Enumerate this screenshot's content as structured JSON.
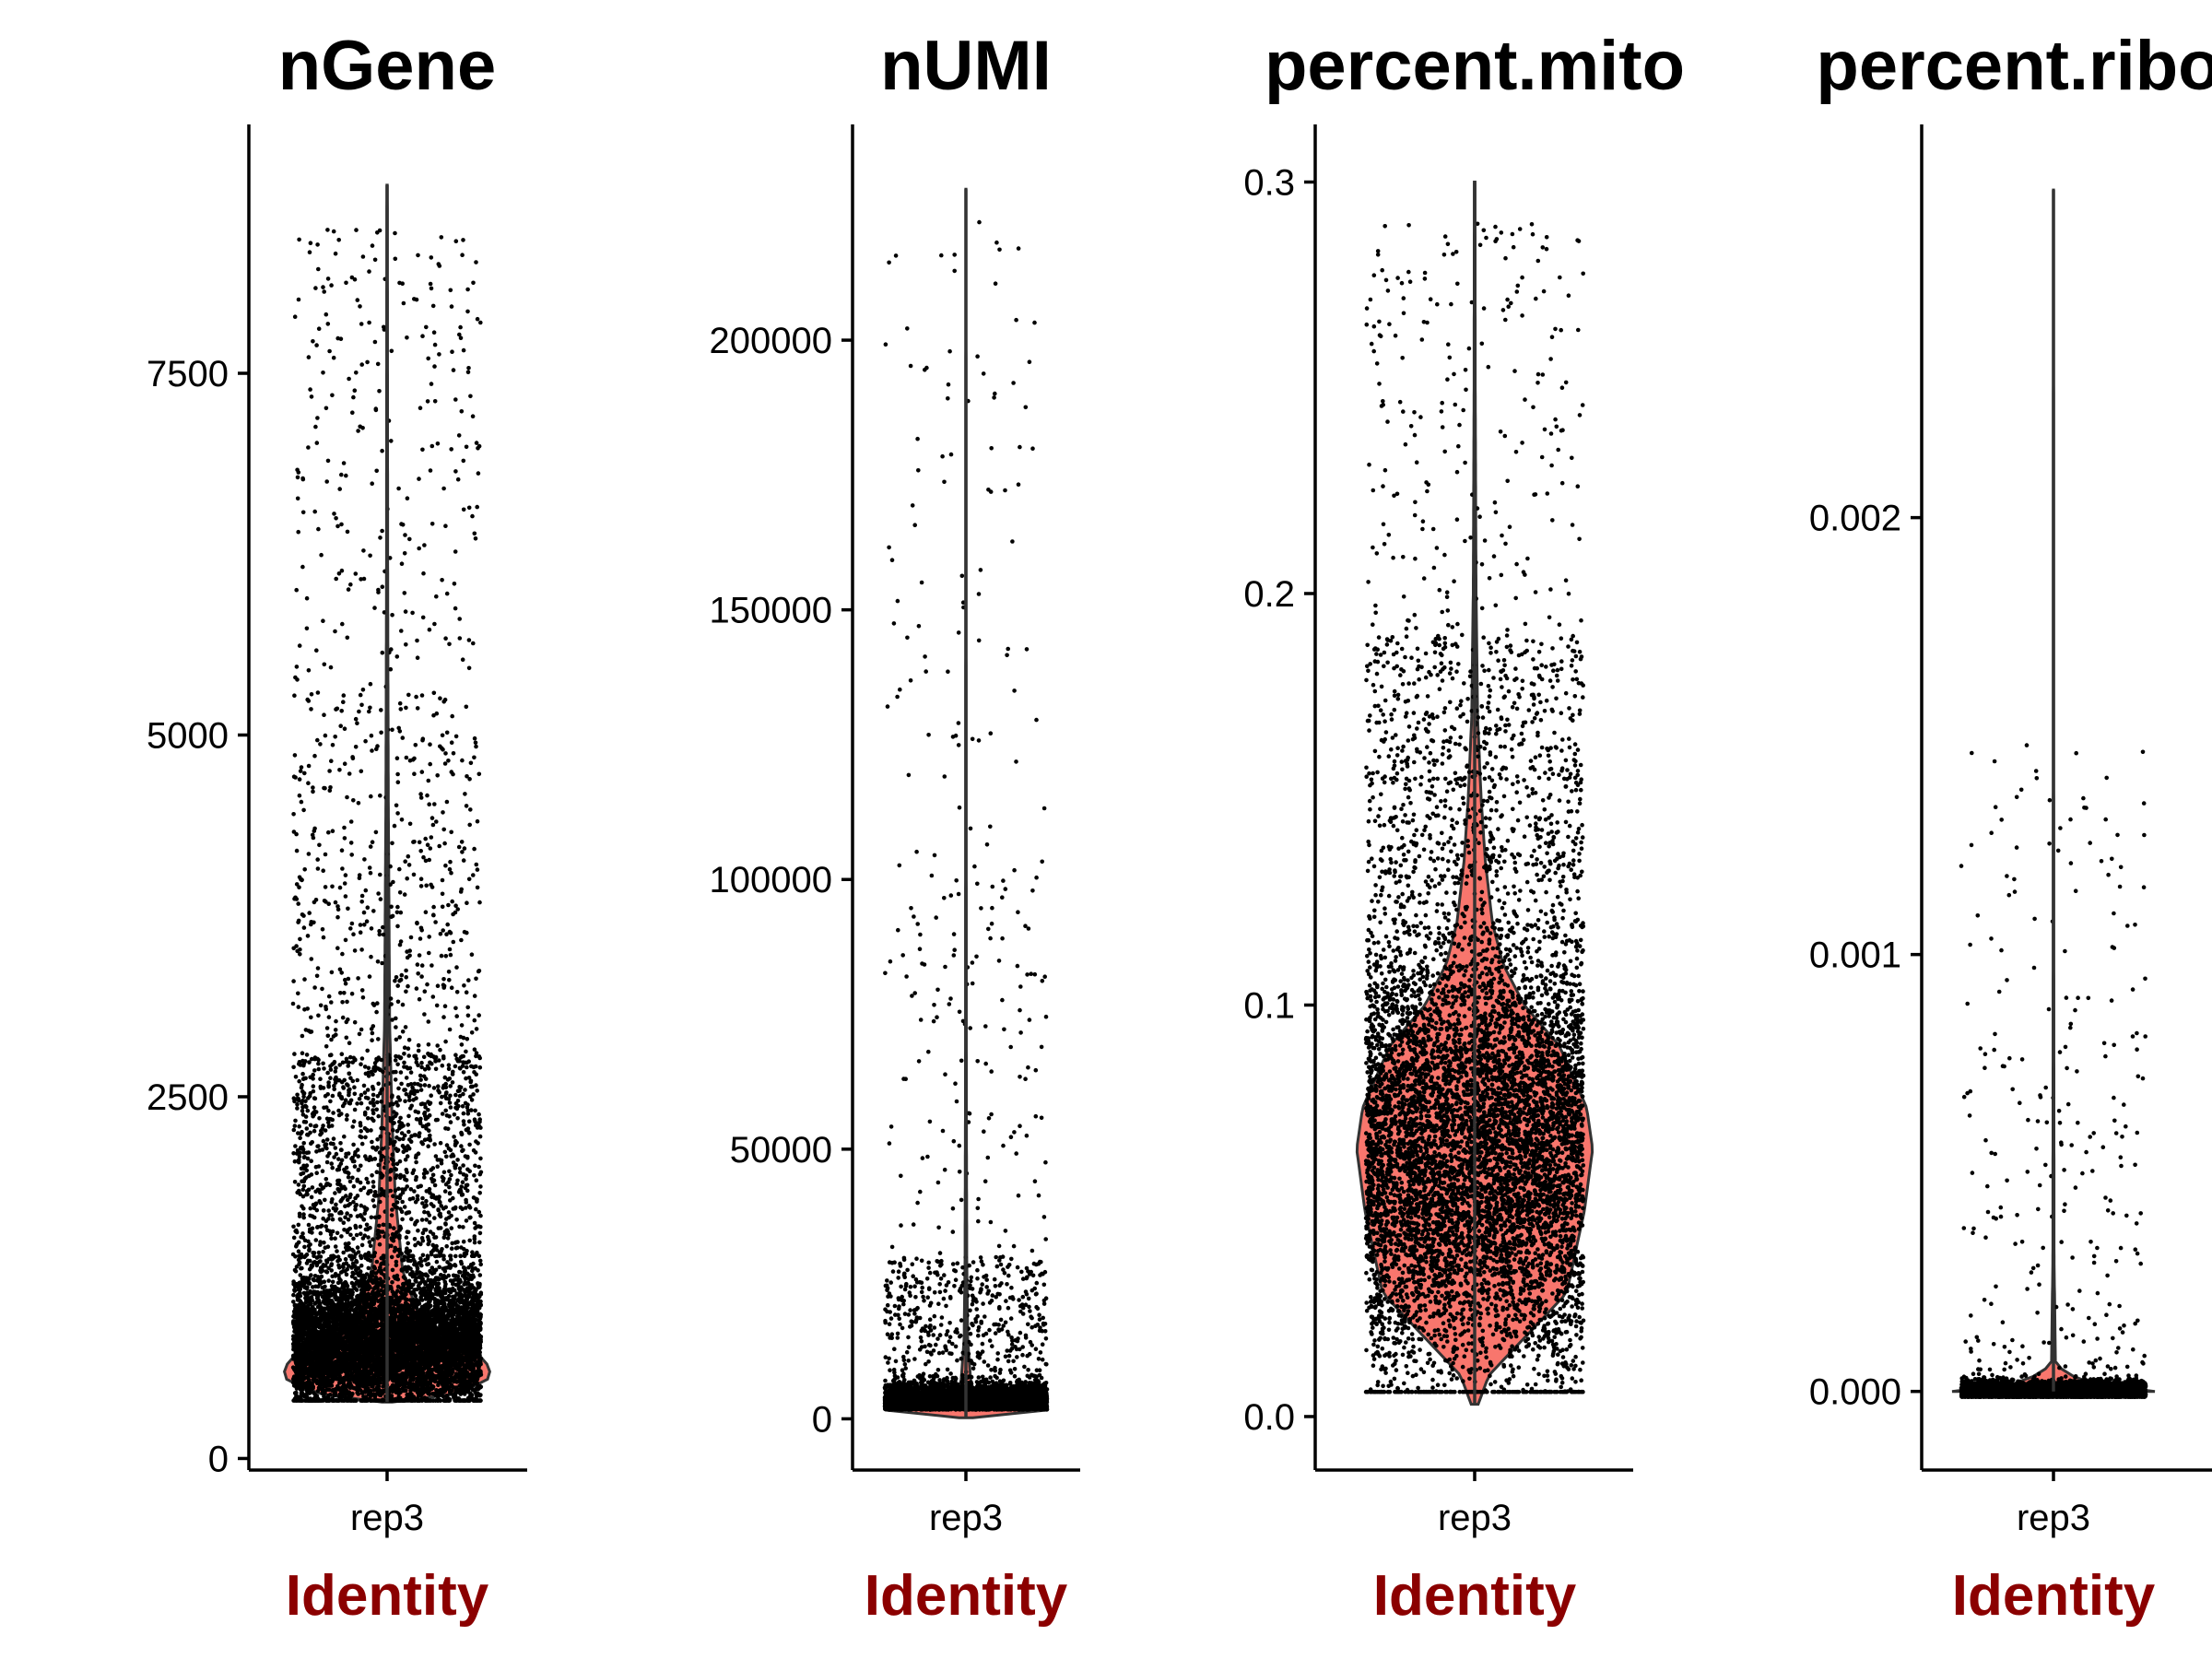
{
  "chart_data": [
    {
      "type": "violin",
      "title": "nGene",
      "xlabel": "Identity",
      "ylabel": "",
      "categories": [
        "rep3"
      ],
      "ylim": [
        -80,
        9220
      ],
      "yticks": [
        0,
        2500,
        5000,
        7500
      ],
      "ytick_labels": [
        "0",
        "2500",
        "5000",
        "7500"
      ],
      "series": [
        {
          "category": "rep3",
          "min": 390,
          "max": 8800,
          "median": 800,
          "q1": 650,
          "q3": 1050,
          "density": [
            [
              390,
              0.05
            ],
            [
              450,
              0.7
            ],
            [
              550,
              0.98
            ],
            [
              620,
              1.0
            ],
            [
              700,
              0.92
            ],
            [
              800,
              0.6
            ],
            [
              1000,
              0.3
            ],
            [
              1300,
              0.15
            ],
            [
              1800,
              0.08
            ],
            [
              2300,
              0.05
            ],
            [
              3000,
              0.025
            ],
            [
              4500,
              0.012
            ],
            [
              6000,
              0.006
            ],
            [
              7500,
              0.004
            ],
            [
              8800,
              0.002
            ]
          ]
        }
      ]
    },
    {
      "type": "violin",
      "title": "nUMI",
      "xlabel": "Identity",
      "ylabel": "",
      "categories": [
        "rep3"
      ],
      "ylim": [
        -9500,
        240000
      ],
      "yticks": [
        0,
        50000,
        100000,
        150000,
        200000
      ],
      "ytick_labels": [
        "0",
        "50000",
        "100000",
        "150000",
        "200000"
      ],
      "series": [
        {
          "category": "rep3",
          "min": 200,
          "max": 228000,
          "median": 1600,
          "q1": 1000,
          "q3": 2800,
          "density": [
            [
              200,
              0.08
            ],
            [
              800,
              0.5
            ],
            [
              1400,
              1.0
            ],
            [
              2000,
              0.8
            ],
            [
              3500,
              0.25
            ],
            [
              6000,
              0.06
            ],
            [
              15000,
              0.02
            ],
            [
              30000,
              0.01
            ],
            [
              60000,
              0.005
            ],
            [
              120000,
              0.003
            ],
            [
              228000,
              0.001
            ]
          ]
        }
      ]
    },
    {
      "type": "violin",
      "title": "percent.mito",
      "xlabel": "Identity",
      "ylabel": "",
      "categories": [
        "rep3"
      ],
      "ylim": [
        -0.013,
        0.314
      ],
      "yticks": [
        0.0,
        0.1,
        0.2,
        0.3
      ],
      "ytick_labels": [
        "0.0",
        "0.1",
        "0.2",
        "0.3"
      ],
      "series": [
        {
          "category": "rep3",
          "min": 0.003,
          "max": 0.3,
          "median": 0.065,
          "q1": 0.04,
          "q3": 0.085,
          "density": [
            [
              0.003,
              0.03
            ],
            [
              0.01,
              0.12
            ],
            [
              0.02,
              0.45
            ],
            [
              0.03,
              0.78
            ],
            [
              0.05,
              0.93
            ],
            [
              0.065,
              1.0
            ],
            [
              0.075,
              0.95
            ],
            [
              0.09,
              0.72
            ],
            [
              0.1,
              0.42
            ],
            [
              0.11,
              0.24
            ],
            [
              0.12,
              0.15
            ],
            [
              0.135,
              0.09
            ],
            [
              0.15,
              0.055
            ],
            [
              0.17,
              0.025
            ],
            [
              0.2,
              0.012
            ],
            [
              0.25,
              0.005
            ],
            [
              0.3,
              0.003
            ]
          ]
        }
      ]
    },
    {
      "type": "violin",
      "title": "percent.ribo",
      "xlabel": "Identity",
      "ylabel": "",
      "categories": [
        "rep3"
      ],
      "ylim": [
        -0.00018,
        0.0029
      ],
      "yticks": [
        0.0,
        0.001,
        0.002
      ],
      "ytick_labels": [
        "0.000",
        "0.001",
        "0.002"
      ],
      "series": [
        {
          "category": "rep3",
          "min": 0.0,
          "max": 0.00275,
          "median": 0.0,
          "q1": 0.0,
          "q3": 0.0,
          "density": [
            [
              0.0,
              1.0
            ],
            [
              2e-05,
              0.3
            ],
            [
              6e-05,
              0.02
            ],
            [
              0.0003,
              0.006
            ],
            [
              0.001,
              0.003
            ],
            [
              0.0015,
              0.002
            ],
            [
              0.00275,
              0.001
            ]
          ]
        }
      ]
    }
  ],
  "colors": {
    "violin_fill": "#f8766d",
    "axis_title": "#8b0000",
    "points": "#000000",
    "outline": "#333333"
  }
}
